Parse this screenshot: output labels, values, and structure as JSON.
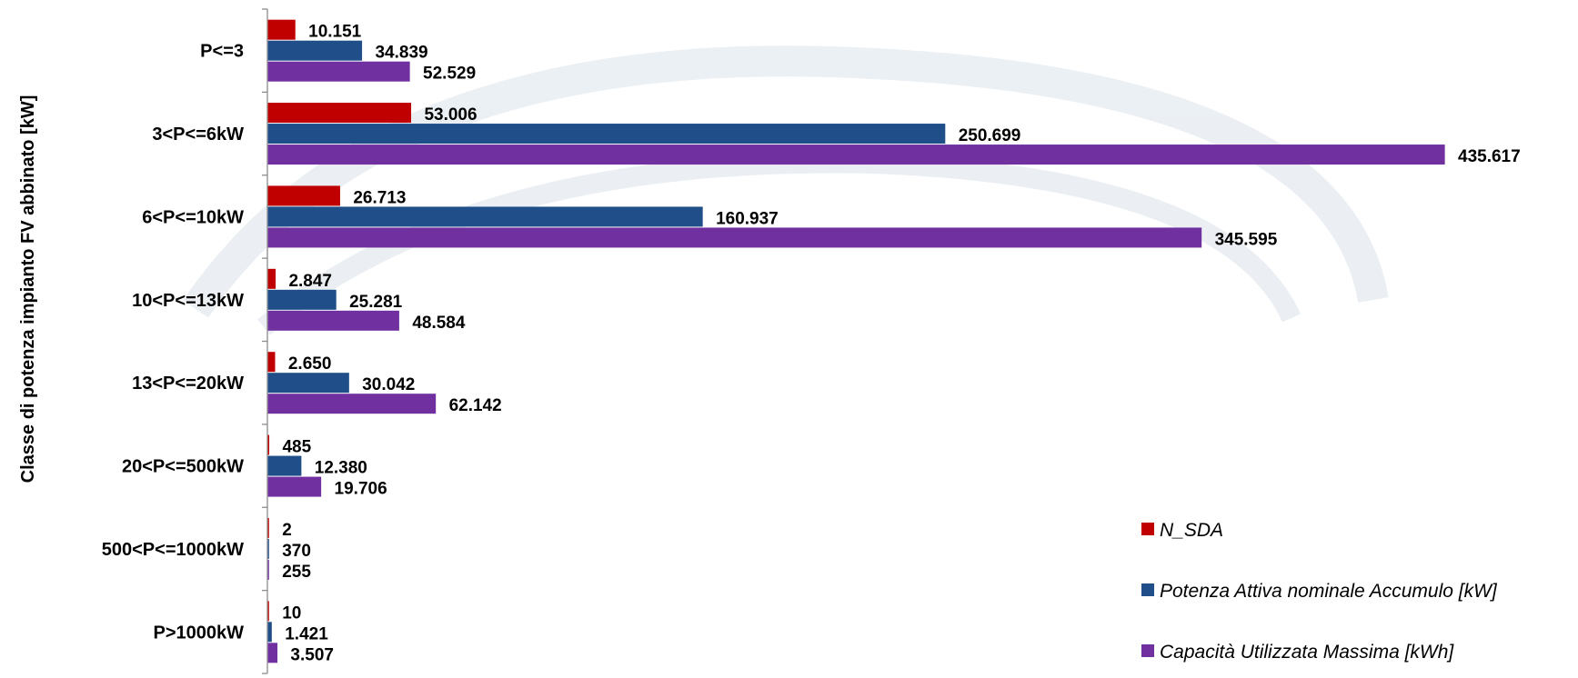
{
  "chart_data": {
    "type": "bar",
    "orientation": "horizontal",
    "ylabel": "Classe di potenza impianto FV abbinato [kW]",
    "xlabel": "",
    "title": "",
    "categories": [
      "P<=3",
      "3<P<=6kW",
      "6<P<=10kW",
      "10<P<=13kW",
      "13<P<=20kW",
      "20<P<=500kW",
      "500<P<=1000kW",
      "P>1000kW"
    ],
    "series": [
      {
        "name": "N_SDA",
        "color": "#c00000",
        "values": [
          10151,
          53006,
          26713,
          2847,
          2650,
          485,
          2,
          10
        ],
        "labels": [
          "10.151",
          "53.006",
          "26.713",
          "2.847",
          "2.650",
          "485",
          "2",
          "10"
        ]
      },
      {
        "name": "Potenza Attiva nominale Accumulo [kW]",
        "color": "#1f4e89",
        "values": [
          34839,
          250699,
          160937,
          25281,
          30042,
          12380,
          370,
          1421
        ],
        "labels": [
          "34.839",
          "250.699",
          "160.937",
          "25.281",
          "30.042",
          "12.380",
          "370",
          "1.421"
        ]
      },
      {
        "name": "Capacità Utilizzata Massima [kWh]",
        "color": "#7030a0",
        "values": [
          52529,
          435617,
          345595,
          48584,
          62142,
          19706,
          255,
          3507
        ],
        "labels": [
          "52.529",
          "435.617",
          "345.595",
          "48.584",
          "62.142",
          "19.706",
          "255",
          "3.507"
        ]
      }
    ],
    "xlim": [
      0,
      440000
    ],
    "grid": false,
    "legend_position": "bottom-right",
    "data_labels": true
  }
}
